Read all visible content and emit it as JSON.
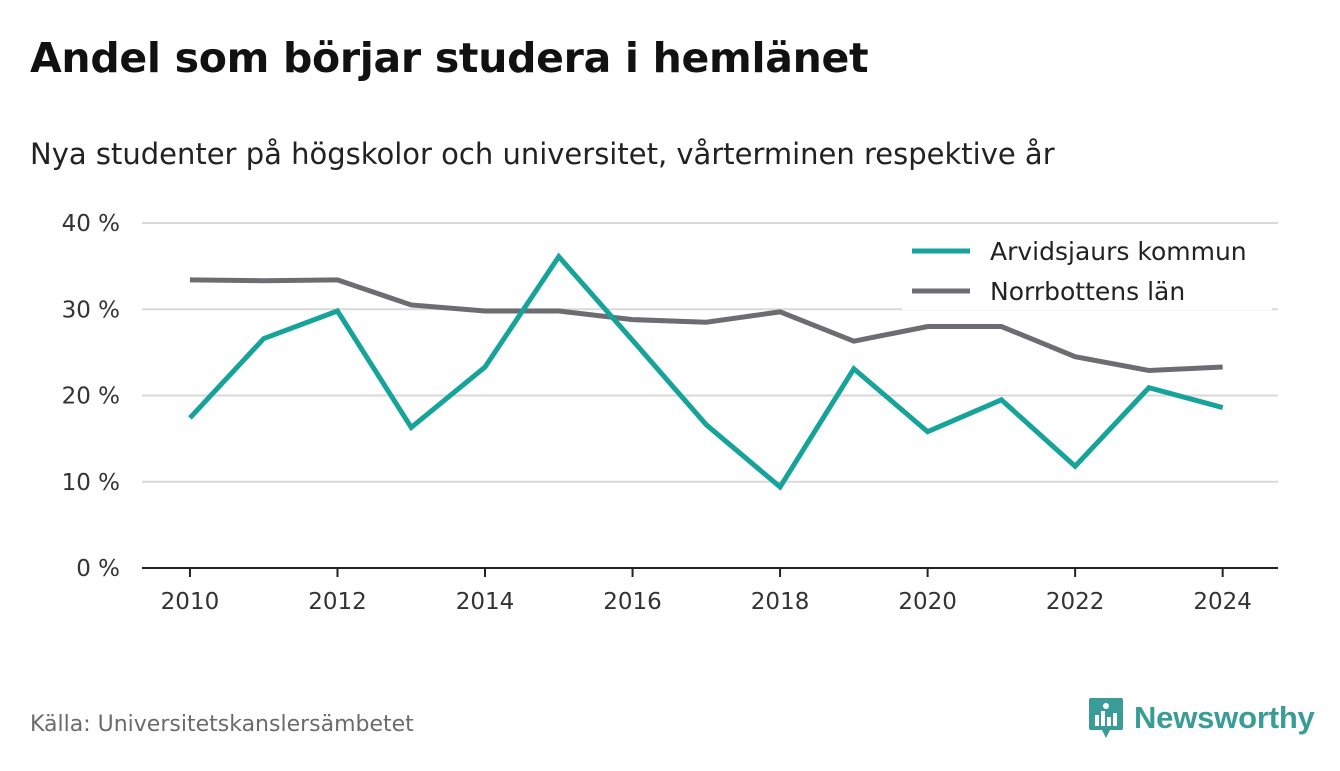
{
  "title": "Andel som börjar studera i hemlänet",
  "subtitle": "Nya studenter på högskolor och universitet, vårterminen respektive år",
  "source": "Källa: Universitetskanslersämbetet",
  "brand": {
    "name": "Newsworthy",
    "icon": "newsworthy-logo-icon",
    "color": "#3a9c96"
  },
  "chart_data": {
    "type": "line",
    "x": [
      2010,
      2011,
      2012,
      2013,
      2014,
      2015,
      2016,
      2017,
      2018,
      2019,
      2020,
      2021,
      2022,
      2023,
      2024
    ],
    "x_ticks": [
      "2010",
      "2012",
      "2014",
      "2016",
      "2018",
      "2020",
      "2022",
      "2024"
    ],
    "xlim": [
      2009.35,
      2024.75
    ],
    "ylim": [
      0,
      40
    ],
    "y_ticks": [
      "0 %",
      "10 %",
      "20 %",
      "30 %",
      "40 %"
    ],
    "grid": true,
    "legend_position": "top-right",
    "series": [
      {
        "name": "Arvidsjaurs kommun",
        "color": "#16a39a",
        "values": [
          17.4,
          26.6,
          29.8,
          16.3,
          23.3,
          36.1,
          26.4,
          16.6,
          9.4,
          23.1,
          15.8,
          19.5,
          11.8,
          20.9,
          18.6
        ]
      },
      {
        "name": "Norrbottens län",
        "color": "#6d6c72",
        "values": [
          33.4,
          33.3,
          33.4,
          30.5,
          29.8,
          29.8,
          28.8,
          28.5,
          29.7,
          26.3,
          28.0,
          28.0,
          24.5,
          22.9,
          23.3
        ]
      }
    ]
  }
}
